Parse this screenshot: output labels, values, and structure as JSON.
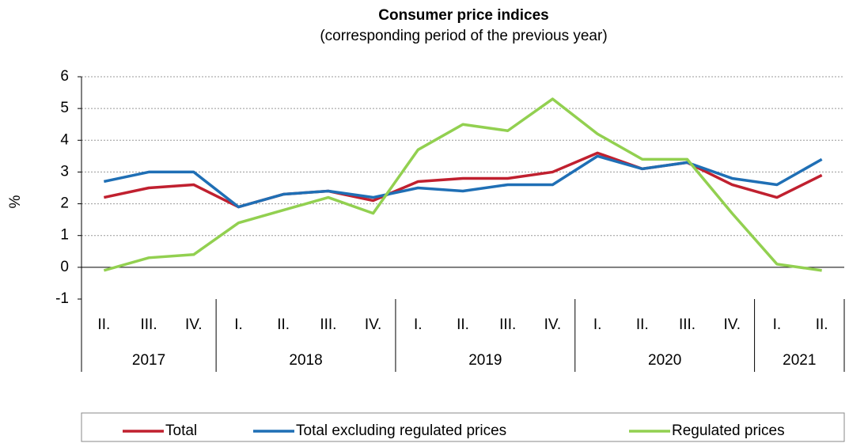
{
  "chart_data": {
    "type": "line",
    "title": "Consumer price indices",
    "subtitle": "(corresponding period of the previous year)",
    "y_label": "%",
    "groups": [
      {
        "name": "2017",
        "categories": [
          "II.",
          "III.",
          "IV."
        ]
      },
      {
        "name": "2018",
        "categories": [
          "I.",
          "II.",
          "III.",
          "IV."
        ]
      },
      {
        "name": "2019",
        "categories": [
          "I.",
          "II.",
          "III.",
          "IV."
        ]
      },
      {
        "name": "2020",
        "categories": [
          "I.",
          "II.",
          "III.",
          "IV."
        ]
      },
      {
        "name": "2021",
        "categories": [
          "I.",
          "II."
        ]
      }
    ],
    "series": [
      {
        "name": "Total",
        "color": "#c0202f",
        "values": [
          2.2,
          2.5,
          2.6,
          1.9,
          2.3,
          2.4,
          2.1,
          2.7,
          2.8,
          2.8,
          3.0,
          3.6,
          3.1,
          3.3,
          2.6,
          2.2,
          2.9
        ]
      },
      {
        "name": "Total excluding regulated prices",
        "color": "#1f6fb5",
        "values": [
          2.7,
          3.0,
          3.0,
          1.9,
          2.3,
          2.4,
          2.2,
          2.5,
          2.4,
          2.6,
          2.6,
          3.5,
          3.1,
          3.3,
          2.8,
          2.6,
          3.4
        ]
      },
      {
        "name": "Regulated prices",
        "color": "#92d050",
        "values": [
          -0.1,
          0.3,
          0.4,
          1.4,
          1.8,
          2.2,
          1.7,
          3.7,
          4.5,
          4.3,
          5.3,
          4.2,
          3.4,
          3.4,
          1.7,
          0.1,
          -0.1
        ]
      }
    ],
    "ylim": [
      -1,
      6
    ],
    "yticks": [
      -1,
      0,
      1,
      2,
      3,
      4,
      5,
      6
    ],
    "grid": true,
    "legend": "bottom"
  }
}
